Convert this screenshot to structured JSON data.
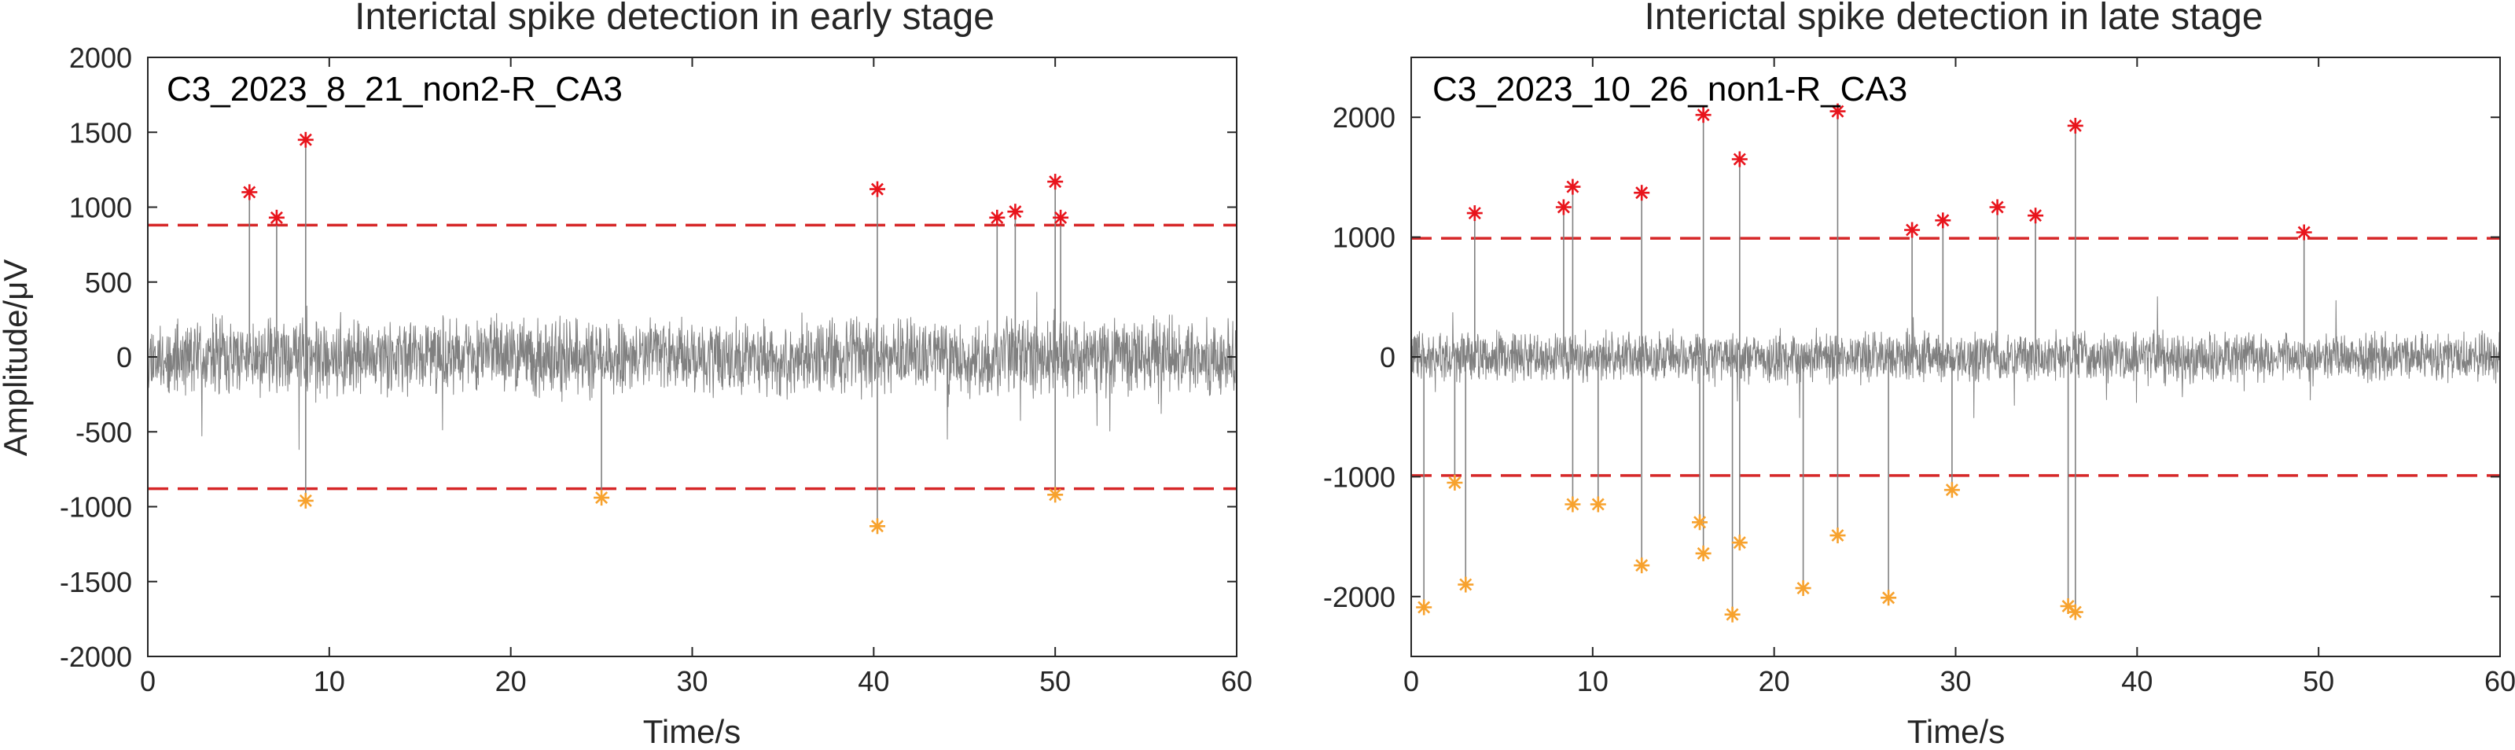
{
  "chart_data": [
    {
      "type": "line",
      "title": "Interictal spike detection in early stage",
      "annotation": "C3_2023_8_21_non2-R_CA3",
      "xlabel": "Time/s",
      "ylabel": "Amplitude/μV",
      "xlim": [
        0,
        60
      ],
      "ylim": [
        -2000,
        2000
      ],
      "xticks": [
        "0",
        "10",
        "20",
        "30",
        "40",
        "50",
        "60"
      ],
      "yticks": [
        "2000",
        "1500",
        "1000",
        "500",
        "0",
        "-500",
        "-1000",
        "-1500",
        "-2000"
      ],
      "grid": false,
      "thresholds": [
        880,
        -880
      ],
      "signal": {
        "color": "#808080",
        "typical_amplitude": 300
      },
      "positive_spikes": [
        {
          "t": 5.6,
          "v": 1100
        },
        {
          "t": 7.1,
          "v": 930
        },
        {
          "t": 8.7,
          "v": 1450
        },
        {
          "t": 40.2,
          "v": 1120
        },
        {
          "t": 46.8,
          "v": 930
        },
        {
          "t": 47.8,
          "v": 970
        },
        {
          "t": 50.0,
          "v": 1170
        },
        {
          "t": 50.3,
          "v": 930
        }
      ],
      "negative_spikes": [
        {
          "t": 8.7,
          "v": -960
        },
        {
          "t": 25.0,
          "v": -940
        },
        {
          "t": 40.2,
          "v": -1130
        },
        {
          "t": 50.0,
          "v": -920
        }
      ]
    },
    {
      "type": "line",
      "title": "Interictal spike detection in late stage",
      "annotation": "C3_2023_10_26_non1-R_CA3",
      "xlabel": "Time/s",
      "ylabel": "",
      "xlim": [
        0,
        60
      ],
      "ylim": [
        -2500,
        2500
      ],
      "xticks": [
        "0",
        "10",
        "20",
        "30",
        "40",
        "50",
        "60"
      ],
      "yticks": [
        "2000",
        "1000",
        "0",
        "-1000",
        "-2000"
      ],
      "grid": false,
      "thresholds": [
        990,
        -990
      ],
      "signal": {
        "color": "#808080",
        "typical_amplitude": 250
      },
      "positive_spikes": [
        {
          "t": 3.5,
          "v": 1200
        },
        {
          "t": 8.4,
          "v": 1250
        },
        {
          "t": 8.9,
          "v": 1420
        },
        {
          "t": 12.7,
          "v": 1370
        },
        {
          "t": 16.1,
          "v": 2020
        },
        {
          "t": 18.1,
          "v": 1650
        },
        {
          "t": 23.5,
          "v": 2050
        },
        {
          "t": 27.6,
          "v": 1060
        },
        {
          "t": 29.3,
          "v": 1140
        },
        {
          "t": 32.3,
          "v": 1250
        },
        {
          "t": 34.4,
          "v": 1180
        },
        {
          "t": 36.6,
          "v": 1930
        },
        {
          "t": 49.2,
          "v": 1040
        }
      ],
      "negative_spikes": [
        {
          "t": 0.7,
          "v": -2090
        },
        {
          "t": 2.4,
          "v": -1050
        },
        {
          "t": 3.0,
          "v": -1900
        },
        {
          "t": 8.9,
          "v": -1230
        },
        {
          "t": 10.3,
          "v": -1230
        },
        {
          "t": 12.7,
          "v": -1740
        },
        {
          "t": 15.9,
          "v": -1380
        },
        {
          "t": 16.1,
          "v": -1640
        },
        {
          "t": 17.7,
          "v": -2150
        },
        {
          "t": 18.1,
          "v": -1550
        },
        {
          "t": 21.6,
          "v": -1930
        },
        {
          "t": 23.5,
          "v": -1490
        },
        {
          "t": 26.3,
          "v": -2010
        },
        {
          "t": 29.8,
          "v": -1110
        },
        {
          "t": 36.2,
          "v": -2080
        },
        {
          "t": 36.6,
          "v": -2130
        }
      ]
    }
  ],
  "colors": {
    "signal": "#808080",
    "threshold": "#d62728",
    "positive_marker": "#e8141c",
    "negative_marker": "#f7a22e",
    "axes": "#262626"
  }
}
